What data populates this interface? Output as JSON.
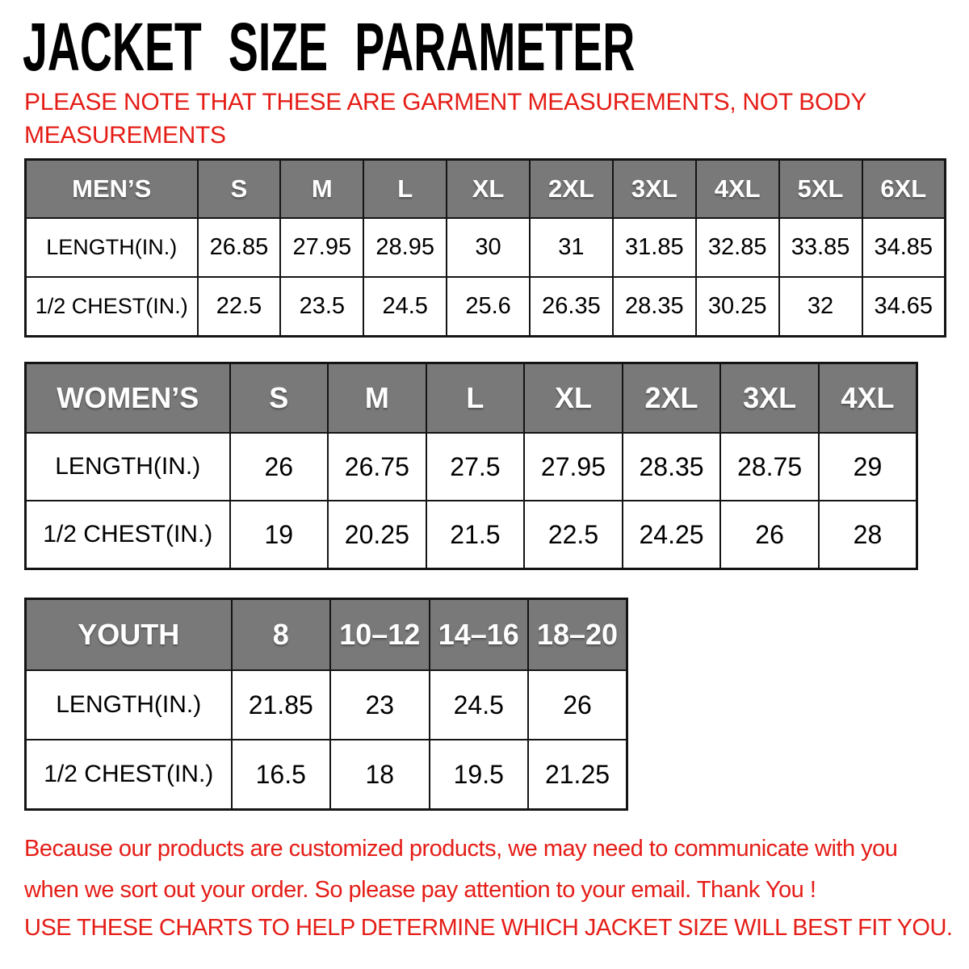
{
  "title": "JACKET SIZE PARAMETER",
  "note": {
    "lines": [
      "PLEASE NOTE THAT THESE ARE GARMENT MEASUREMENTS, NOT BODY",
      "MEASUREMENTS"
    ]
  },
  "tables": [
    {
      "name": "mens",
      "header": [
        "MEN’S",
        "S",
        "M",
        "L",
        "XL",
        "2XL",
        "3XL",
        "4XL",
        "5XL",
        "6XL"
      ],
      "rows": [
        {
          "label": "LENGTH(IN.)",
          "values": [
            "26.85",
            "27.95",
            "28.95",
            "30",
            "31",
            "31.85",
            "32.85",
            "33.85",
            "34.85"
          ]
        },
        {
          "label": "1/2 CHEST(IN.)",
          "values": [
            "22.5",
            "23.5",
            "24.5",
            "25.6",
            "26.35",
            "28.35",
            "30.25",
            "32",
            "34.65"
          ]
        }
      ]
    },
    {
      "name": "womens",
      "header": [
        "WOMEN’S",
        "S",
        "M",
        "L",
        "XL",
        "2XL",
        "3XL",
        "4XL"
      ],
      "rows": [
        {
          "label": "LENGTH(IN.)",
          "values": [
            "26",
            "26.75",
            "27.5",
            "27.95",
            "28.35",
            "28.75",
            "29"
          ]
        },
        {
          "label": "1/2 CHEST(IN.)",
          "values": [
            "19",
            "20.25",
            "21.5",
            "22.5",
            "24.25",
            "26",
            "28"
          ]
        }
      ]
    },
    {
      "name": "youth",
      "header": [
        "YOUTH",
        "8",
        "10–12",
        "14–16",
        "18–20"
      ],
      "rows": [
        {
          "label": "LENGTH(IN.)",
          "values": [
            "21.85",
            "23",
            "24.5",
            "26"
          ]
        },
        {
          "label": "1/2 CHEST(IN.)",
          "values": [
            "16.5",
            "18",
            "19.5",
            "21.25"
          ]
        }
      ]
    }
  ],
  "footer": {
    "paragraph_lines": [
      "Because our products are customized products, we may need to communicate with you",
      "when we sort out your order. So please pay attention to your email. Thank You !"
    ],
    "closing_line": "USE THESE CHARTS TO HELP DETERMINE WHICH JACKET SIZE WILL BEST FIT YOU."
  },
  "colors": {
    "header_gray": "#797979",
    "accent_red": "#e51d17",
    "text_black": "#000000",
    "grid_black": "#141414"
  }
}
